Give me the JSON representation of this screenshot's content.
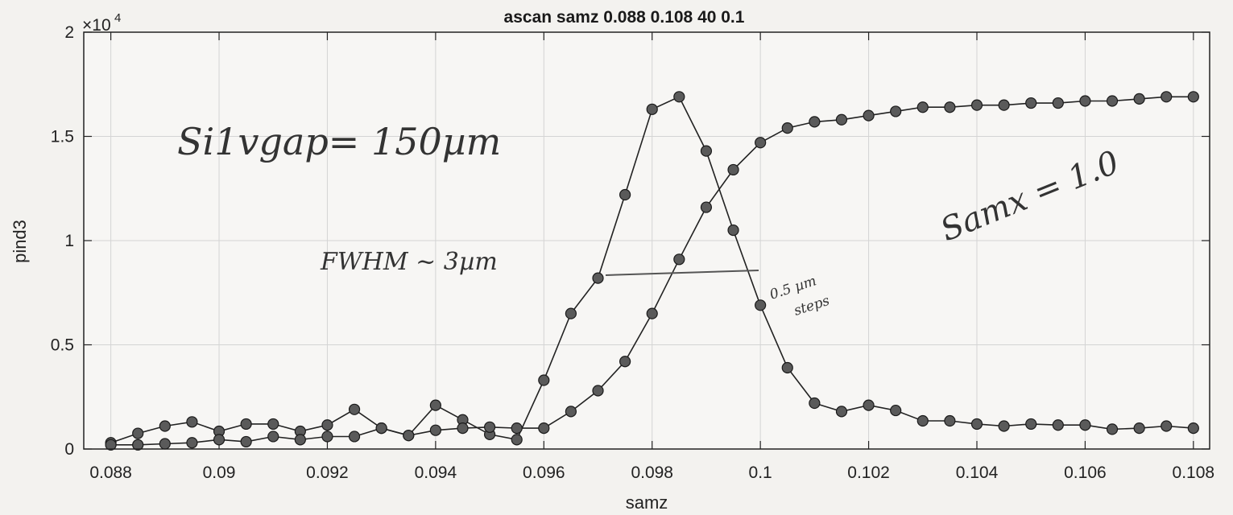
{
  "chart_data": {
    "type": "line",
    "title": "ascan  samz 0.088 0.108  40 0.1",
    "xlabel": "samz",
    "ylabel": "pind3",
    "xlim": [
      0.0875,
      0.1083
    ],
    "ylim": [
      0,
      20000
    ],
    "y_exponent_label": "×10",
    "y_exponent_power": "4",
    "x_ticks": [
      0.088,
      0.09,
      0.092,
      0.094,
      0.096,
      0.098,
      0.1,
      0.102,
      0.104,
      0.106,
      0.108
    ],
    "x_tick_labels": [
      "0.088",
      "0.09",
      "0.092",
      "0.094",
      "0.096",
      "0.098",
      "0.1",
      "0.102",
      "0.104",
      "0.106",
      "0.108"
    ],
    "y_ticks": [
      0,
      5000,
      10000,
      15000,
      20000
    ],
    "y_tick_labels": [
      "0",
      "0.5",
      "1",
      "1.5",
      "2"
    ],
    "grid": true,
    "marker_color": "#5a5a5a",
    "line_color": "#222222",
    "x": [
      0.088,
      0.0885,
      0.089,
      0.0895,
      0.09,
      0.0905,
      0.091,
      0.0915,
      0.092,
      0.0925,
      0.093,
      0.0935,
      0.094,
      0.0945,
      0.095,
      0.0955,
      0.096,
      0.0965,
      0.097,
      0.0975,
      0.098,
      0.0985,
      0.099,
      0.0995,
      0.1,
      0.1005,
      0.101,
      0.1015,
      0.102,
      0.1025,
      0.103,
      0.1035,
      0.104,
      0.1045,
      0.105,
      0.1055,
      0.106,
      0.1065,
      0.107,
      0.1075,
      0.108
    ],
    "series": [
      {
        "values": [
          300,
          750,
          1100,
          1300,
          850,
          1200,
          1200,
          850,
          1150,
          1900,
          1000,
          650,
          2100,
          1400,
          700,
          450,
          3300,
          6500,
          8200,
          12200,
          16300,
          16900,
          14300,
          10500,
          6900,
          3900,
          2200,
          1800,
          2100,
          1850,
          1350,
          1350,
          1200,
          1100,
          1200,
          1150,
          1150,
          950,
          1000,
          1100,
          1000
        ]
      },
      {
        "values": [
          200,
          200,
          250,
          300,
          450,
          350,
          600,
          450,
          600,
          600,
          1000,
          650,
          900,
          1000,
          1050,
          1000,
          1000,
          1800,
          2800,
          4200,
          6500,
          9100,
          11600,
          13400,
          14700,
          15400,
          15700,
          15800,
          16000,
          16200,
          16400,
          16400,
          16500,
          16500,
          16600,
          16600,
          16700,
          16700,
          16800,
          16900,
          16900
        ]
      }
    ]
  },
  "annotations": {
    "gap": "Si1vgap= 150µm",
    "fwhm": "FWHM ~ 3µm",
    "steps_line1": "0.5 µm",
    "steps_line2": "steps",
    "samx": "Samx = 1.0"
  }
}
